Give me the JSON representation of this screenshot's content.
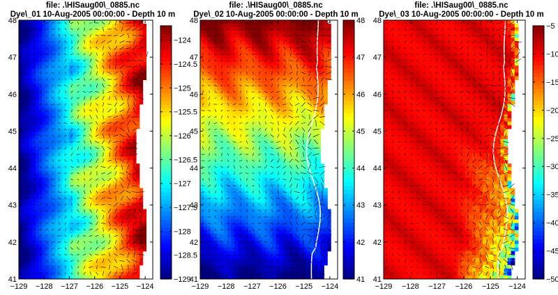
{
  "chart_data": [
    {
      "type": "heatmap",
      "title_line1": "file: .\\HISaug00\\_0885.nc",
      "title_line2": "Dye\\_01 10-Aug-2005 00:00:00   - Depth 10 m",
      "xticks": [
        "-129",
        "-128",
        "-127",
        "-126",
        "-125",
        "-124"
      ],
      "yticks": [
        "41",
        "42",
        "43",
        "44",
        "45",
        "46",
        "47",
        "48"
      ],
      "xlim": [
        -129,
        -123.7
      ],
      "ylim": [
        41,
        48
      ],
      "colorbar": {
        "range": [
          -129,
          -123.7
        ],
        "ticks": [
          "-124",
          "-124.5",
          "-125",
          "-125.5",
          "-126",
          "-126.5",
          "-127",
          "-127.5",
          "-128",
          "-128.5",
          "-129"
        ]
      },
      "colormap": "jet",
      "field_description": "dye equals longitude; blue offshore, red near coast"
    },
    {
      "type": "heatmap",
      "title_line1": "file: .\\HISaug00\\_0885.nc",
      "title_line2": "Dye\\_02 10-Aug-2005 00:00:00   - Depth 10 m",
      "xticks": [
        "-129",
        "-128",
        "-127",
        "-126",
        "-125",
        "-124"
      ],
      "yticks": [
        "41",
        "42",
        "43",
        "44",
        "45",
        "46",
        "47",
        "48"
      ],
      "xlim": [
        -129,
        -123.7
      ],
      "ylim": [
        41,
        48
      ],
      "colorbar": {
        "range": [
          41,
          48
        ],
        "ticks": [
          "48",
          "47",
          "46",
          "45",
          "44",
          "43",
          "42",
          "41"
        ]
      },
      "colormap": "jet",
      "field_description": "dye equals latitude; blue south, red north"
    },
    {
      "type": "heatmap",
      "title_line1": "file: .\\HISaug00\\_0885.nc",
      "title_line2": "Dye\\_03 10-Aug-2005 00:00:00   - Depth 10 m",
      "xticks": [
        "-129",
        "-128",
        "-127",
        "-126",
        "-125",
        "-124"
      ],
      "yticks": [
        "41",
        "42",
        "43",
        "44",
        "45",
        "46",
        "47",
        "48"
      ],
      "xlim": [
        -129,
        -123.7
      ],
      "ylim": [
        41,
        48
      ],
      "colorbar": {
        "range": [
          -50,
          -5
        ],
        "ticks": [
          "-5",
          "-10",
          "-15",
          "-20",
          "-25",
          "-30",
          "-35",
          "-40",
          "-45",
          "-50"
        ]
      },
      "colormap": "jet",
      "field_description": "dye mostly -5 to -12 (red) offshore, blue-cyan filaments near coast"
    }
  ],
  "colors": {
    "land": "#ffffff",
    "vector_arrows": "#000000",
    "contour_line": "#ffffff"
  }
}
